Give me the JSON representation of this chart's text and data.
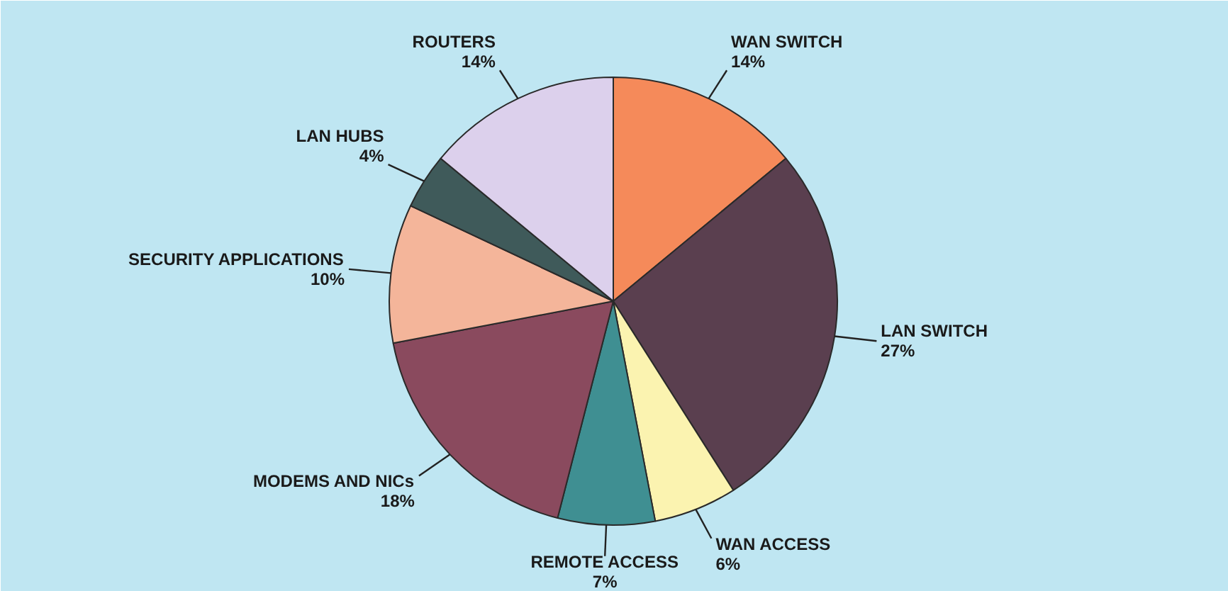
{
  "chart_data": {
    "type": "pie",
    "categories": [
      "WAN SWITCH",
      "LAN SWITCH",
      "WAN ACCESS",
      "REMOTE ACCESS",
      "MODEMS AND NICs",
      "SECURITY APPLICATIONS",
      "LAN HUBS",
      "ROUTERS"
    ],
    "values": [
      14,
      27,
      6,
      7,
      18,
      10,
      4,
      14
    ],
    "value_labels": [
      "14%",
      "27%",
      "6%",
      "7%",
      "18%",
      "10%",
      "4%",
      "14%"
    ],
    "colors": [
      "#f58a5a",
      "#5a3f4f",
      "#fbf3b0",
      "#3f8f92",
      "#8a4a5e",
      "#f4b59a",
      "#3f5a5a",
      "#dcd0ec"
    ]
  }
}
